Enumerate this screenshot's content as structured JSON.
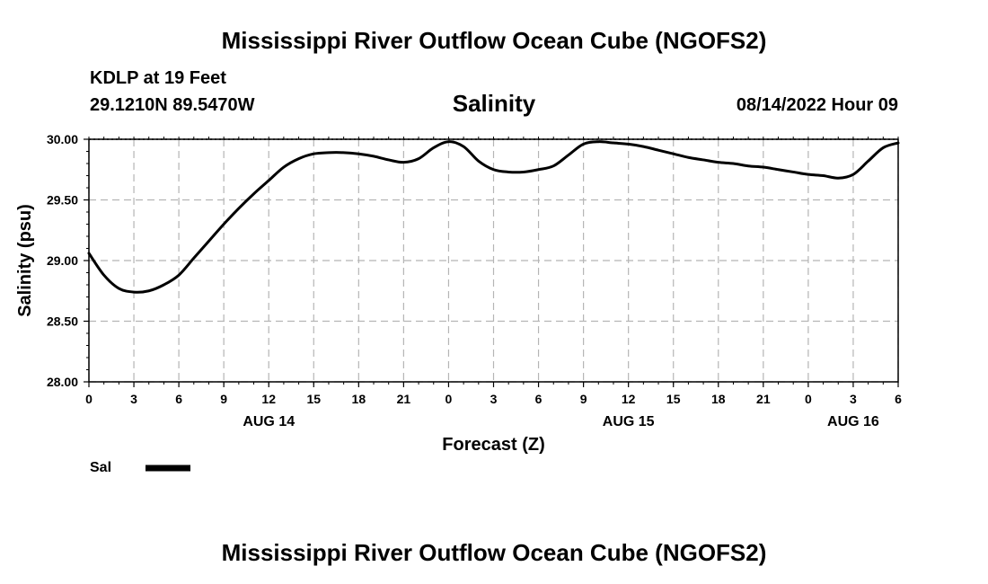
{
  "header": {
    "title": "Mississippi River Outflow Ocean Cube (NGOFS2)",
    "station": "KDLP at 19 Feet",
    "coordinates": "29.1210N  89.5470W",
    "run_time": "08/14/2022 Hour 09"
  },
  "footer": {
    "title": "Mississippi River Outflow Ocean Cube (NGOFS2)"
  },
  "chart_data": {
    "type": "line",
    "title": "Salinity",
    "xlabel": "Forecast (Z)",
    "ylabel": "Salinity (psu)",
    "ylim": [
      28.0,
      30.0
    ],
    "xlim": [
      0,
      54
    ],
    "x_unit": "hours from 08/14/2022 00Z",
    "y_ticks": [
      "28.00",
      "28.50",
      "29.00",
      "29.50",
      "30.00"
    ],
    "x_tick_labels": [
      "0",
      "3",
      "6",
      "9",
      "12",
      "15",
      "18",
      "21",
      "0",
      "3",
      "6",
      "9",
      "12",
      "15",
      "18",
      "21",
      "0",
      "3",
      "6"
    ],
    "day_labels": [
      {
        "label": "AUG 14",
        "hour": 12
      },
      {
        "label": "AUG 15",
        "hour": 36
      },
      {
        "label": "AUG 16",
        "hour": 51
      }
    ],
    "grid": true,
    "legend": {
      "position": "bottom-left",
      "entries": [
        {
          "name": "Sal",
          "color": "#000000"
        }
      ]
    },
    "series": [
      {
        "name": "Sal",
        "color": "#000000",
        "x": [
          0,
          1,
          2,
          3,
          4,
          5,
          6,
          7,
          8,
          9,
          10,
          11,
          12,
          13,
          14,
          15,
          16,
          17,
          18,
          19,
          20,
          21,
          22,
          23,
          24,
          25,
          26,
          27,
          28,
          29,
          30,
          31,
          32,
          33,
          34,
          35,
          36,
          37,
          38,
          39,
          40,
          41,
          42,
          43,
          44,
          45,
          46,
          47,
          48,
          49,
          50,
          51,
          52,
          53,
          54
        ],
        "values": [
          29.06,
          28.88,
          28.77,
          28.74,
          28.75,
          28.8,
          28.88,
          29.02,
          29.16,
          29.3,
          29.43,
          29.55,
          29.66,
          29.77,
          29.84,
          29.88,
          29.89,
          29.89,
          29.88,
          29.86,
          29.83,
          29.81,
          29.84,
          29.93,
          29.98,
          29.94,
          29.82,
          29.75,
          29.73,
          29.73,
          29.75,
          29.78,
          29.87,
          29.96,
          29.98,
          29.97,
          29.96,
          29.94,
          29.91,
          29.88,
          29.85,
          29.83,
          29.81,
          29.8,
          29.78,
          29.77,
          29.75,
          29.73,
          29.71,
          29.7,
          29.68,
          29.71,
          29.82,
          29.93,
          29.97
        ]
      }
    ]
  }
}
